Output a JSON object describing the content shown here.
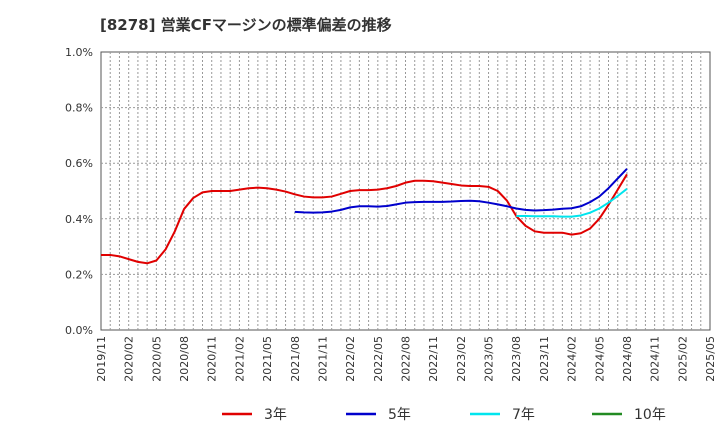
{
  "chart_data": {
    "type": "line",
    "title": "[8278]  営業CFマージンの標準偏差の推移",
    "xlabel": "",
    "ylabel": "",
    "ylim": [
      0,
      1.0
    ],
    "yticks": [
      0,
      0.2,
      0.4,
      0.6,
      0.8,
      1.0
    ],
    "ytick_labels": [
      "0.0%",
      "0.2%",
      "0.4%",
      "0.6%",
      "0.8%",
      "1.0%"
    ],
    "x_start": "2019-11",
    "x_end": "2025-05",
    "xtick_labels": [
      "2019/11",
      "2020/02",
      "2020/05",
      "2020/08",
      "2020/11",
      "2021/02",
      "2021/05",
      "2021/08",
      "2021/11",
      "2022/02",
      "2022/05",
      "2022/08",
      "2022/11",
      "2023/02",
      "2023/05",
      "2023/08",
      "2023/11",
      "2024/02",
      "2024/05",
      "2024/08",
      "2024/11",
      "2025/02",
      "2025/05"
    ],
    "grid": true,
    "legend": "bottom",
    "series": [
      {
        "name": "3年",
        "color": "#e00000",
        "points": [
          [
            "2019-11",
            0.27
          ],
          [
            "2019-12",
            0.27
          ],
          [
            "2020-01",
            0.265
          ],
          [
            "2020-02",
            0.255
          ],
          [
            "2020-03",
            0.245
          ],
          [
            "2020-04",
            0.24
          ],
          [
            "2020-05",
            0.25
          ],
          [
            "2020-06",
            0.29
          ],
          [
            "2020-07",
            0.355
          ],
          [
            "2020-08",
            0.435
          ],
          [
            "2020-09",
            0.475
          ],
          [
            "2020-10",
            0.495
          ],
          [
            "2020-11",
            0.5
          ],
          [
            "2020-12",
            0.5
          ],
          [
            "2021-01",
            0.5
          ],
          [
            "2021-02",
            0.505
          ],
          [
            "2021-03",
            0.51
          ],
          [
            "2021-04",
            0.512
          ],
          [
            "2021-05",
            0.51
          ],
          [
            "2021-06",
            0.505
          ],
          [
            "2021-07",
            0.498
          ],
          [
            "2021-08",
            0.488
          ],
          [
            "2021-09",
            0.48
          ],
          [
            "2021-10",
            0.477
          ],
          [
            "2021-11",
            0.477
          ],
          [
            "2021-12",
            0.48
          ],
          [
            "2022-01",
            0.49
          ],
          [
            "2022-02",
            0.5
          ],
          [
            "2022-03",
            0.503
          ],
          [
            "2022-04",
            0.503
          ],
          [
            "2022-05",
            0.505
          ],
          [
            "2022-06",
            0.51
          ],
          [
            "2022-07",
            0.518
          ],
          [
            "2022-08",
            0.53
          ],
          [
            "2022-09",
            0.537
          ],
          [
            "2022-10",
            0.537
          ],
          [
            "2022-11",
            0.535
          ],
          [
            "2022-12",
            0.53
          ],
          [
            "2023-01",
            0.525
          ],
          [
            "2023-02",
            0.52
          ],
          [
            "2023-03",
            0.518
          ],
          [
            "2023-04",
            0.518
          ],
          [
            "2023-05",
            0.515
          ],
          [
            "2023-06",
            0.5
          ],
          [
            "2023-07",
            0.465
          ],
          [
            "2023-08",
            0.41
          ],
          [
            "2023-09",
            0.375
          ],
          [
            "2023-10",
            0.355
          ],
          [
            "2023-11",
            0.35
          ],
          [
            "2023-12",
            0.35
          ],
          [
            "2024-01",
            0.35
          ],
          [
            "2024-02",
            0.343
          ],
          [
            "2024-03",
            0.348
          ],
          [
            "2024-04",
            0.365
          ],
          [
            "2024-05",
            0.4
          ],
          [
            "2024-06",
            0.45
          ],
          [
            "2024-07",
            0.505
          ],
          [
            "2024-08",
            0.56
          ]
        ]
      },
      {
        "name": "5年",
        "color": "#0000cc",
        "points": [
          [
            "2021-08",
            0.425
          ],
          [
            "2021-09",
            0.423
          ],
          [
            "2021-10",
            0.422
          ],
          [
            "2021-11",
            0.423
          ],
          [
            "2021-12",
            0.426
          ],
          [
            "2022-01",
            0.432
          ],
          [
            "2022-02",
            0.441
          ],
          [
            "2022-03",
            0.445
          ],
          [
            "2022-04",
            0.445
          ],
          [
            "2022-05",
            0.444
          ],
          [
            "2022-06",
            0.446
          ],
          [
            "2022-07",
            0.452
          ],
          [
            "2022-08",
            0.458
          ],
          [
            "2022-09",
            0.46
          ],
          [
            "2022-10",
            0.461
          ],
          [
            "2022-11",
            0.461
          ],
          [
            "2022-12",
            0.461
          ],
          [
            "2023-01",
            0.462
          ],
          [
            "2023-02",
            0.464
          ],
          [
            "2023-03",
            0.465
          ],
          [
            "2023-04",
            0.463
          ],
          [
            "2023-05",
            0.458
          ],
          [
            "2023-06",
            0.452
          ],
          [
            "2023-07",
            0.445
          ],
          [
            "2023-08",
            0.437
          ],
          [
            "2023-09",
            0.432
          ],
          [
            "2023-10",
            0.43
          ],
          [
            "2023-11",
            0.431
          ],
          [
            "2023-12",
            0.433
          ],
          [
            "2024-01",
            0.436
          ],
          [
            "2024-02",
            0.438
          ],
          [
            "2024-03",
            0.445
          ],
          [
            "2024-04",
            0.46
          ],
          [
            "2024-05",
            0.48
          ],
          [
            "2024-06",
            0.51
          ],
          [
            "2024-07",
            0.545
          ],
          [
            "2024-08",
            0.58
          ]
        ]
      },
      {
        "name": "7年",
        "color": "#00e5ee",
        "points": [
          [
            "2023-08",
            0.41
          ],
          [
            "2023-09",
            0.41
          ],
          [
            "2023-10",
            0.409
          ],
          [
            "2023-11",
            0.409
          ],
          [
            "2023-12",
            0.409
          ],
          [
            "2024-01",
            0.408
          ],
          [
            "2024-02",
            0.408
          ],
          [
            "2024-03",
            0.412
          ],
          [
            "2024-04",
            0.422
          ],
          [
            "2024-05",
            0.437
          ],
          [
            "2024-06",
            0.458
          ],
          [
            "2024-07",
            0.482
          ],
          [
            "2024-08",
            0.508
          ]
        ]
      },
      {
        "name": "10年",
        "color": "#228b22",
        "points": []
      }
    ]
  }
}
